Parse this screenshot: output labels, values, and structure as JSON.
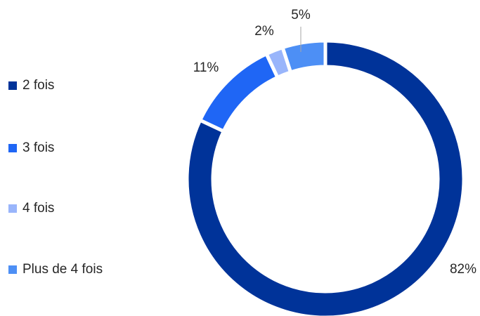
{
  "chart_data": {
    "type": "pie",
    "categories": [
      "2 fois",
      "3 fois",
      "4 fois",
      "Plus de 4 fois"
    ],
    "values": [
      82,
      11,
      2,
      5
    ],
    "value_labels": [
      "82%",
      "11%",
      "2%",
      "5%"
    ],
    "colors": [
      "#003399",
      "#1f66f5",
      "#99b5fb",
      "#4d8ff5"
    ],
    "legend": "left"
  }
}
